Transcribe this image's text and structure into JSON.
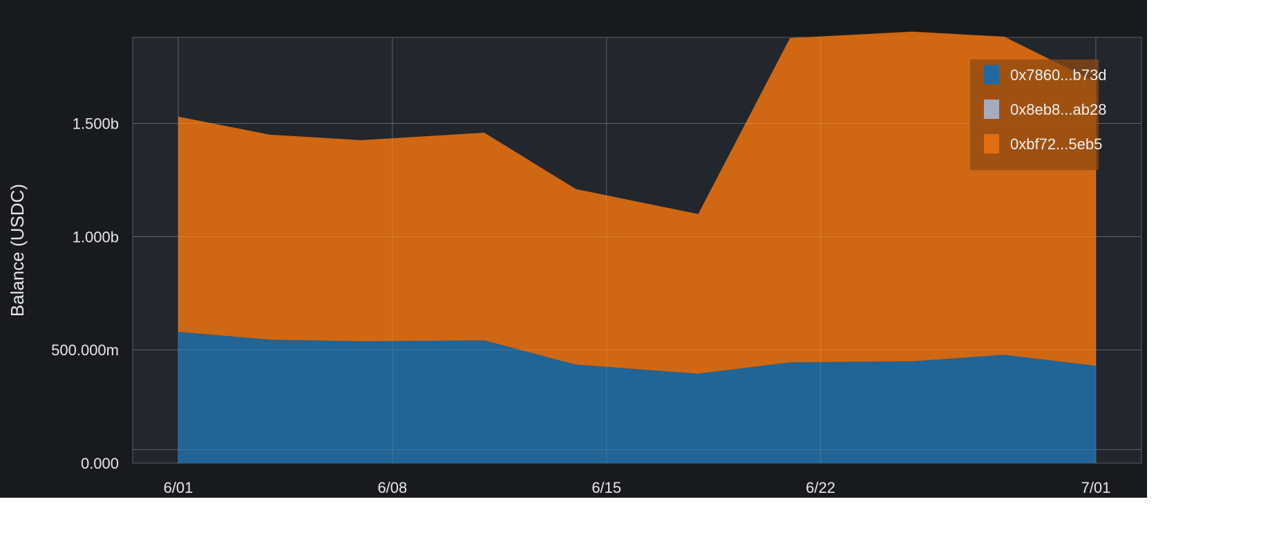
{
  "chart_data": {
    "type": "area",
    "stacked": true,
    "ylabel": "Balance (USDC)",
    "x_dates": [
      "6/01",
      "6/04",
      "6/07",
      "6/11",
      "6/14",
      "6/18",
      "6/21",
      "6/25",
      "6/28",
      "7/01"
    ],
    "x_tick_labels": [
      "6/01",
      "6/08",
      "6/15",
      "6/22",
      "7/01"
    ],
    "y_tick_values": [
      0,
      500000000,
      1000000000,
      1500000000
    ],
    "y_tick_labels": [
      "0.000",
      "500.000m",
      "1.000b",
      "1.500b"
    ],
    "ylim": [
      0,
      1880000000
    ],
    "grid": true,
    "legend_position": "top-right",
    "series": [
      {
        "name": "0x7860...b73d",
        "color": "#2269a0",
        "values": [
          580000000,
          545000000,
          538000000,
          542000000,
          435000000,
          395000000,
          445000000,
          450000000,
          478000000,
          430000000
        ]
      },
      {
        "name": "0x8eb8...ab28",
        "color": "#a6abbc",
        "values": [
          0,
          0,
          0,
          0,
          0,
          0,
          0,
          0,
          0,
          0
        ]
      },
      {
        "name": "0xbf72...5eb5",
        "color": "#e06d10",
        "values": [
          950000000,
          905000000,
          888000000,
          917000000,
          775000000,
          705000000,
          1432000000,
          1455000000,
          1405000000,
          1252000000
        ]
      }
    ]
  }
}
